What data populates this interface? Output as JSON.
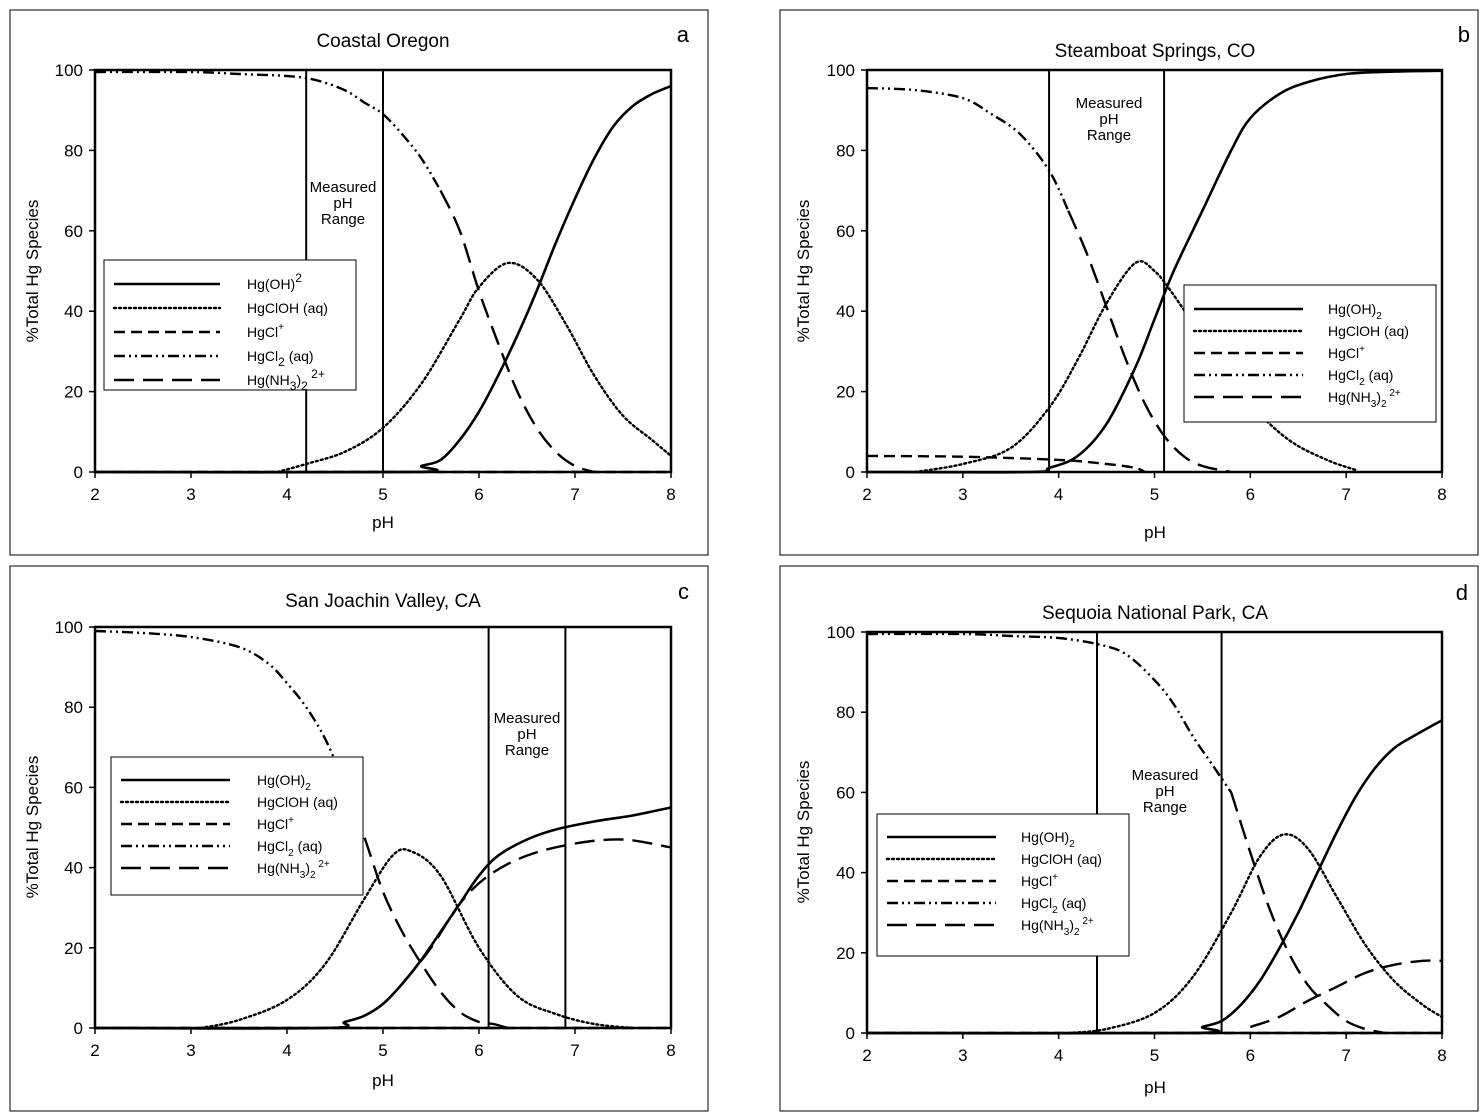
{
  "figure": {
    "panels": [
      {
        "letter": "a",
        "chart_data": {
          "type": "line",
          "title": "Coastal Oregon",
          "xlabel": "pH",
          "ylabel": "%Total Hg Species",
          "xlim": [
            2,
            8
          ],
          "ylim": [
            0,
            100
          ],
          "xticks": [
            2,
            3,
            4,
            5,
            6,
            7,
            8
          ],
          "yticks": [
            0,
            20,
            40,
            60,
            80,
            100
          ],
          "grid": false,
          "legend_position": "middle-left",
          "annotation": [
            "Measured",
            "pH",
            "Range"
          ],
          "measured_ph_range": [
            4.2,
            5.0
          ],
          "series": [
            {
              "label": "Hg(OH)2",
              "legend_html": "Hg(OH)<tspan dy=\"-7\" font-size=\"12\">2</tspan>",
              "style": "solid",
              "x": [
                2,
                5.3,
                5.4,
                5.6,
                5.8,
                6,
                6.2,
                6.4,
                6.6,
                6.8,
                7,
                7.2,
                7.4,
                7.6,
                7.8,
                8
              ],
              "y": [
                0,
                0,
                1.5,
                3,
                8,
                15,
                24,
                34,
                45,
                57,
                68,
                78,
                86,
                91,
                94,
                96
              ]
            },
            {
              "label": "HgClOH (aq)",
              "legend_html": "HgClOH (aq)",
              "style": "dotted",
              "x": [
                3.9,
                4.2,
                4.6,
                5,
                5.4,
                5.8,
                6,
                6.3,
                6.6,
                6.9,
                7.2,
                7.5,
                7.8,
                8
              ],
              "y": [
                0,
                2,
                5,
                11,
                22,
                38,
                46,
                52,
                48,
                37,
                24,
                14,
                8,
                4
              ]
            },
            {
              "label": "HgCl+",
              "legend_html": "HgCl<tspan dy=\"-7\" font-size=\"10\">+</tspan>",
              "style": "dashed",
              "x": [
                2,
                8
              ],
              "y": [
                0,
                0
              ]
            },
            {
              "label": "HgCl2 (aq)",
              "legend_html": "HgCl<tspan dy=\"5\" font-size=\"12\">2</tspan><tspan dy=\"-5\"> (aq)</tspan>",
              "style": "dashdotdot",
              "x": [
                2,
                3,
                3.5,
                4,
                4.3,
                4.6,
                4.8,
                5,
                5.2,
                5.4,
                5.6
              ],
              "y": [
                99.5,
                99.5,
                99,
                98.5,
                97.5,
                95,
                92,
                89,
                84,
                78,
                70
              ]
            },
            {
              "label": "Hg(NH3)2 2+",
              "legend_html": "Hg(NH<tspan dy=\"5\" font-size=\"12\">3</tspan><tspan dy=\"-5\">)</tspan><tspan dy=\"5\" font-size=\"12\">2</tspan><tspan dy=\"-12\" font-size=\"12\"> 2+</tspan>",
              "style": "longdash",
              "x": [
                5.6,
                5.8,
                6,
                6.2,
                6.4,
                6.6,
                6.8,
                7,
                7.2
              ],
              "y": [
                70,
                60,
                45,
                32,
                20,
                11,
                5,
                1.5,
                0
              ]
            }
          ]
        }
      },
      {
        "letter": "b",
        "chart_data": {
          "type": "line",
          "title": "Steamboat Springs, CO",
          "xlabel": "pH",
          "ylabel": "%Total Hg Species",
          "xlim": [
            2,
            8
          ],
          "ylim": [
            0,
            100
          ],
          "xticks": [
            2,
            3,
            4,
            5,
            6,
            7,
            8
          ],
          "yticks": [
            0,
            20,
            40,
            60,
            80,
            100
          ],
          "grid": false,
          "legend_position": "middle-right",
          "annotation": [
            "Measured",
            "pH",
            "Range"
          ],
          "measured_ph_range": [
            3.9,
            5.1
          ],
          "series": [
            {
              "label": "Hg(OH)2",
              "legend_html": "Hg(OH)<tspan dy=\"5\" font-size=\"10\">2</tspan>",
              "style": "solid",
              "x": [
                2,
                3.7,
                3.9,
                4.2,
                4.5,
                4.8,
                5,
                5.2,
                5.5,
                5.8,
                6,
                6.3,
                6.6,
                7,
                7.5,
                8
              ],
              "y": [
                0,
                0,
                1,
                4,
                12,
                26,
                38,
                50,
                65,
                80,
                88,
                94,
                97,
                99,
                99.6,
                99.8
              ]
            },
            {
              "label": "HgClOH (aq)",
              "legend_html": "HgClOH (aq)",
              "style": "dotted",
              "x": [
                2.5,
                3,
                3.5,
                3.9,
                4.2,
                4.5,
                4.8,
                5,
                5.2,
                5.6,
                6,
                6.4,
                6.8,
                7.1
              ],
              "y": [
                0,
                2,
                6,
                16,
                28,
                42,
                52,
                50,
                44,
                30,
                17,
                8,
                3,
                0.5
              ]
            },
            {
              "label": "HgCl+",
              "legend_html": "HgCl<tspan dy=\"-6\" font-size=\"10\">+</tspan>",
              "style": "dashed",
              "x": [
                2,
                3,
                4,
                4.5,
                4.8,
                4.9
              ],
              "y": [
                4,
                3.8,
                3,
                2,
                1,
                0
              ]
            },
            {
              "label": "HgCl2 (aq)",
              "legend_html": "HgCl<tspan dy=\"5\" font-size=\"10\">2</tspan><tspan dy=\"-5\"> (aq)</tspan>",
              "style": "dashdotdot",
              "x": [
                2,
                2.5,
                3,
                3.3,
                3.6,
                3.9,
                4.1
              ],
              "y": [
                95.5,
                95,
                93,
                89,
                84,
                75,
                65
              ]
            },
            {
              "label": "Hg(NH3)2 2+",
              "legend_html": "Hg(NH<tspan dy=\"5\" font-size=\"10\">3</tspan><tspan dy=\"-5\">)</tspan><tspan dy=\"5\" font-size=\"10\">2</tspan><tspan dy=\"-11\" font-size=\"10\"> 2+</tspan>",
              "style": "longdash",
              "x": [
                4.1,
                4.3,
                4.5,
                4.7,
                4.9,
                5.1,
                5.3,
                5.5,
                5.8
              ],
              "y": [
                65,
                54,
                41,
                28,
                17,
                9,
                4,
                1.5,
                0
              ]
            }
          ]
        }
      },
      {
        "letter": "c",
        "chart_data": {
          "type": "line",
          "title": "San Joachin Valley, CA",
          "xlabel": "pH",
          "ylabel": "%Total Hg Species",
          "xlim": [
            2,
            8
          ],
          "ylim": [
            0,
            100
          ],
          "xticks": [
            2,
            3,
            4,
            5,
            6,
            7,
            8
          ],
          "yticks": [
            0,
            20,
            40,
            60,
            80,
            100
          ],
          "grid": false,
          "legend_position": "middle-left",
          "annotation": [
            "Measured",
            "pH",
            "Range"
          ],
          "measured_ph_range": [
            6.1,
            6.9
          ],
          "series": [
            {
              "label": "Hg(OH)2",
              "legend_html": "Hg(OH)<tspan dy=\"5\" font-size=\"10\">2</tspan>",
              "style": "solid",
              "x": [
                2,
                4.4,
                4.6,
                4.8,
                5,
                5.2,
                5.4,
                5.6,
                5.8,
                6,
                6.2,
                6.5,
                6.8,
                7.2,
                7.6,
                8
              ],
              "y": [
                0,
                0,
                1.5,
                3,
                6,
                11,
                17,
                24,
                31,
                38,
                43,
                47,
                49.5,
                51.5,
                53,
                55
              ]
            },
            {
              "label": "HgClOH (aq)",
              "legend_html": "HgClOH (aq)",
              "style": "dotted",
              "x": [
                3.1,
                3.5,
                4,
                4.4,
                4.8,
                5.1,
                5.3,
                5.6,
                6,
                6.4,
                6.8,
                7.2,
                7.6
              ],
              "y": [
                0,
                2,
                7,
                16,
                32,
                43,
                44,
                38,
                20,
                8,
                3.5,
                1,
                0
              ]
            },
            {
              "label": "HgCl+",
              "legend_html": "HgCl<tspan dy=\"-6\" font-size=\"10\">+</tspan>",
              "style": "dashed",
              "x": [
                2,
                8
              ],
              "y": [
                0,
                0
              ]
            },
            {
              "label": "HgCl2 (aq)",
              "legend_html": "HgCl<tspan dy=\"5\" font-size=\"10\">2</tspan><tspan dy=\"-5\"> (aq)</tspan>",
              "style": "dashdotdot",
              "x": [
                2,
                2.5,
                3,
                3.5,
                3.8,
                4,
                4.2,
                4.4,
                4.6
              ],
              "y": [
                99,
                98.5,
                97.5,
                95,
                91,
                86,
                80,
                72,
                61
              ]
            },
            {
              "label": "Hg(NH3)2 2+",
              "legend_html": "Hg(NH<tspan dy=\"5\" font-size=\"10\">3</tspan><tspan dy=\"-5\">)</tspan><tspan dy=\"5\" font-size=\"10\">2</tspan><tspan dy=\"-11\" font-size=\"10\"> 2+</tspan>",
              "style": "longdash",
              "x": [
                4.6,
                4.8,
                5,
                5.2,
                5.4,
                5.6,
                5.8,
                6,
                6.15,
                6.3,
                4.9,
                5.2,
                5.5,
                5.8,
                6.1,
                6.5,
                7,
                7.5,
                8
              ],
              "y": [
                61,
                48,
                34,
                24,
                16,
                9,
                4,
                1.5,
                1,
                0,
                null,
                11,
                20,
                31,
                38,
                43,
                46,
                47,
                45
              ]
            }
          ]
        }
      },
      {
        "letter": "d",
        "chart_data": {
          "type": "line",
          "title": "Sequoia National Park, CA",
          "xlabel": "pH",
          "ylabel": "%Total Hg Species",
          "xlim": [
            2,
            8
          ],
          "ylim": [
            0,
            100
          ],
          "xticks": [
            2,
            3,
            4,
            5,
            6,
            7,
            8
          ],
          "yticks": [
            0,
            20,
            40,
            60,
            80,
            100
          ],
          "grid": false,
          "legend_position": "middle-left",
          "annotation": [
            "Measured",
            "pH",
            "Range"
          ],
          "measured_ph_range": [
            4.4,
            5.7
          ],
          "series": [
            {
              "label": "Hg(OH)2",
              "legend_html": "Hg(OH)<tspan dy=\"5\" font-size=\"10\">2</tspan>",
              "style": "solid",
              "x": [
                2,
                5.4,
                5.5,
                5.7,
                5.9,
                6.1,
                6.3,
                6.5,
                6.7,
                6.9,
                7.1,
                7.3,
                7.5,
                7.7,
                8
              ],
              "y": [
                0,
                0,
                1.5,
                3,
                7,
                13,
                21,
                30,
                40,
                50,
                59,
                66,
                71,
                74,
                78
              ]
            },
            {
              "label": "HgClOH (aq)",
              "legend_html": "HgClOH (aq)",
              "style": "dotted",
              "x": [
                4.1,
                4.5,
                5,
                5.4,
                5.8,
                6.1,
                6.35,
                6.6,
                6.9,
                7.2,
                7.5,
                7.8,
                8
              ],
              "y": [
                0,
                1,
                5,
                14,
                30,
                44,
                49.5,
                46,
                34,
                22,
                13,
                7,
                4
              ]
            },
            {
              "label": "HgCl+",
              "legend_html": "HgCl<tspan dy=\"-6\" font-size=\"10\">+</tspan>",
              "style": "dashed",
              "x": [
                2,
                8
              ],
              "y": [
                0,
                0
              ]
            },
            {
              "label": "HgCl2 (aq)",
              "legend_html": "HgCl<tspan dy=\"5\" font-size=\"10\">2</tspan><tspan dy=\"-5\"> (aq)</tspan>",
              "style": "dashdotdot",
              "x": [
                2,
                3,
                3.5,
                4,
                4.4,
                4.7,
                5,
                5.2,
                5.4,
                5.6,
                5.8
              ],
              "y": [
                99.5,
                99.5,
                99,
                98.5,
                97,
                94.5,
                88,
                82,
                74,
                67,
                60
              ]
            },
            {
              "label": "Hg(NH3)2 2+",
              "legend_html": "Hg(NH<tspan dy=\"5\" font-size=\"10\">3</tspan><tspan dy=\"-5\">)</tspan><tspan dy=\"5\" font-size=\"10\">2</tspan><tspan dy=\"-11\" font-size=\"10\"> 2+</tspan>",
              "style": "longdash",
              "x": [
                5.8,
                6,
                6.2,
                6.4,
                6.6,
                6.8,
                7,
                7.2,
                7.4,
                5.8,
                6,
                6.3,
                6.6,
                6.9,
                7.2,
                7.5,
                7.8,
                8
              ],
              "y": [
                60,
                45,
                31,
                20,
                12,
                7,
                3,
                1,
                0,
                null,
                1.5,
                4,
                8,
                11.5,
                15,
                17,
                18,
                18
              ]
            }
          ]
        }
      }
    ]
  }
}
